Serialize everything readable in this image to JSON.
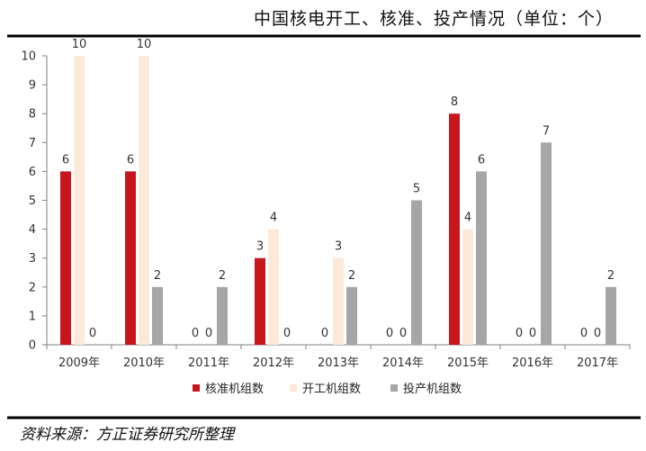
{
  "chart_data": {
    "type": "bar",
    "title": "中国核电开工、核准、投产情况（单位：个）",
    "source": "资料来源：方正证券研究所整理",
    "categories": [
      "2009年",
      "2010年",
      "2011年",
      "2012年",
      "2013年",
      "2014年",
      "2015年",
      "2016年",
      "2017年"
    ],
    "ylim": [
      0,
      10
    ],
    "yticks": [
      "0",
      "1",
      "2",
      "3",
      "4",
      "5",
      "6",
      "7",
      "8",
      "9",
      "10"
    ],
    "legend_position": "bottom",
    "series": [
      {
        "name": "核准机组数",
        "color": "#c8161d",
        "values": [
          6,
          6,
          0,
          3,
          0,
          0,
          8,
          0,
          0
        ],
        "labels": [
          "6",
          "6",
          "0",
          "3",
          "0",
          "0",
          "8",
          "0",
          "0"
        ]
      },
      {
        "name": "开工机组数",
        "color": "#fde9d9",
        "values": [
          10,
          10,
          0,
          4,
          3,
          0,
          4,
          0,
          0
        ],
        "labels": [
          "10",
          "10",
          "0",
          "4",
          "3",
          "0",
          "4",
          "0",
          "0"
        ]
      },
      {
        "name": "投产机组数",
        "color": "#a6a6a6",
        "values": [
          0,
          2,
          2,
          0,
          2,
          5,
          6,
          7,
          2
        ],
        "labels": [
          "0",
          "2",
          "2",
          "0",
          "2",
          "5",
          "6",
          "7",
          "2"
        ]
      }
    ]
  }
}
